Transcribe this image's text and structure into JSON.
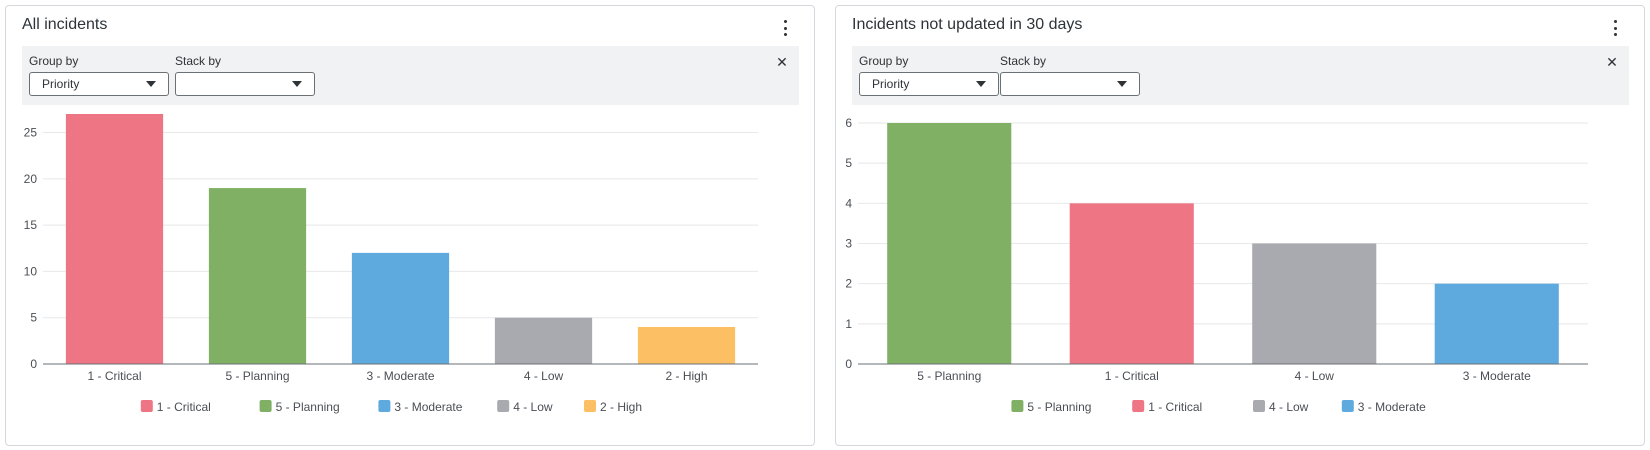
{
  "colors": {
    "critical": "#ee7583",
    "planning": "#7fb064",
    "moderate": "#5eaade",
    "low": "#a9a9b0",
    "high": "#fdbf63",
    "grid": "#e6e8ea",
    "axis": "#6b7075",
    "text": "#4a4f55"
  },
  "left": {
    "title": "All incidents",
    "group_by_label": "Group by",
    "group_by_value": "Priority",
    "stack_by_label": "Stack by",
    "stack_by_value": ""
  },
  "right": {
    "title": "Incidents not updated in 30 days",
    "group_by_label": "Group by",
    "group_by_value": "Priority",
    "stack_by_label": "Stack by",
    "stack_by_value": ""
  },
  "chart_data": [
    {
      "type": "bar",
      "title": "All incidents",
      "categories": [
        "1 - Critical",
        "5 - Planning",
        "3 - Moderate",
        "4 - Low",
        "2 - High"
      ],
      "values": [
        27,
        19,
        12,
        5,
        4
      ],
      "bar_colors": [
        "#ee7583",
        "#7fb064",
        "#5eaade",
        "#a9a9b0",
        "#fdbf63"
      ],
      "yticks": [
        0,
        5,
        10,
        15,
        20,
        25
      ],
      "ylim": [
        0,
        27
      ],
      "xlabel": "",
      "ylabel": "",
      "grid": true,
      "legend": {
        "placement": "bottom",
        "entries": [
          "1 - Critical",
          "5 - Planning",
          "3 - Moderate",
          "4 - Low",
          "2 - High"
        ]
      }
    },
    {
      "type": "bar",
      "title": "Incidents not updated in 30 days",
      "categories": [
        "5 - Planning",
        "1 - Critical",
        "4 - Low",
        "3 - Moderate"
      ],
      "values": [
        6,
        4,
        3,
        2
      ],
      "bar_colors": [
        "#7fb064",
        "#ee7583",
        "#a9a9b0",
        "#5eaade"
      ],
      "yticks": [
        0,
        1,
        2,
        3,
        4,
        5,
        6
      ],
      "ylim": [
        0,
        6
      ],
      "xlabel": "",
      "ylabel": "",
      "grid": true,
      "legend": {
        "placement": "bottom",
        "entries": [
          "5 - Planning",
          "1 - Critical",
          "4 - Low",
          "3 - Moderate"
        ]
      }
    }
  ]
}
